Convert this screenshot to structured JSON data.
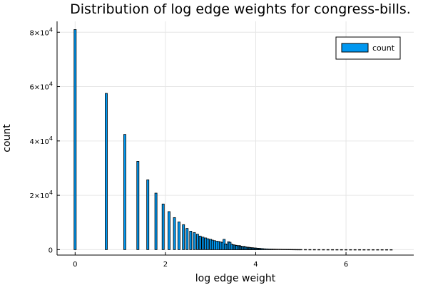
{
  "chart_data": {
    "type": "bar",
    "title": "Distribution of log edge weights for congress-bills.",
    "xlabel": "log edge weight",
    "ylabel": "count",
    "xlim": [
      -0.4,
      7.5
    ],
    "ylim": [
      -2000,
      84000
    ],
    "grid": true,
    "legend_position": "top-right",
    "x_ticks": [
      {
        "value": 0,
        "label": "0"
      },
      {
        "value": 2,
        "label": "2"
      },
      {
        "value": 4,
        "label": "4"
      },
      {
        "value": 6,
        "label": "6"
      }
    ],
    "y_ticks": [
      {
        "value": 0,
        "base": "0",
        "exp": ""
      },
      {
        "value": 20000,
        "base": "2×10",
        "exp": "4"
      },
      {
        "value": 40000,
        "base": "4×10",
        "exp": "4"
      },
      {
        "value": 60000,
        "base": "6×10",
        "exp": "4"
      },
      {
        "value": 80000,
        "base": "8×10",
        "exp": "4"
      }
    ],
    "bin_width": 0.0485,
    "colors": {
      "bar": "#0097f0",
      "bar_edge": "#000000",
      "axis": "#000000"
    },
    "series": [
      {
        "name": "count",
        "x": [
          0.0,
          0.69,
          1.1,
          1.39,
          1.61,
          1.79,
          1.95,
          2.08,
          2.2,
          2.3,
          2.4,
          2.48,
          2.56,
          2.64,
          2.71,
          2.77,
          2.83,
          2.89,
          2.94,
          3.0,
          3.04,
          3.09,
          3.14,
          3.18,
          3.22,
          3.26,
          3.3,
          3.33,
          3.37,
          3.4,
          3.43,
          3.47,
          3.5,
          3.53,
          3.56,
          3.58,
          3.61,
          3.64,
          3.66,
          3.69,
          3.71,
          3.74,
          3.76,
          3.78,
          3.81,
          3.83,
          3.85,
          3.87,
          3.89,
          3.91,
          3.93,
          3.95,
          3.97,
          3.99,
          4.01,
          4.03,
          4.05,
          4.07,
          4.09,
          4.11,
          4.13,
          4.16,
          4.2,
          4.25,
          4.3,
          4.35,
          4.4,
          4.45,
          4.5,
          4.55,
          4.6,
          4.65,
          4.7,
          4.75,
          4.8,
          4.85,
          4.9,
          4.95,
          5.0,
          5.1,
          5.2,
          5.3,
          5.4,
          5.5,
          5.6,
          5.7,
          5.8,
          5.9,
          6.0,
          6.1,
          6.2,
          6.3,
          6.4,
          6.5,
          6.6,
          6.7,
          6.8,
          6.9,
          7.0
        ],
        "values": [
          81000,
          57500,
          42400,
          32500,
          25700,
          20800,
          16800,
          14000,
          11800,
          10200,
          9200,
          7800,
          6800,
          6300,
          5700,
          5000,
          4600,
          4300,
          4000,
          3800,
          3500,
          3300,
          3100,
          3000,
          2800,
          2700,
          3800,
          2100,
          1900,
          2900,
          2700,
          2000,
          1800,
          1700,
          1600,
          1500,
          1400,
          1500,
          1300,
          1200,
          1100,
          1200,
          1000,
          1000,
          900,
          900,
          800,
          800,
          700,
          700,
          700,
          600,
          600,
          600,
          550,
          500,
          500,
          450,
          450,
          400,
          400,
          350,
          300,
          280,
          250,
          230,
          200,
          180,
          160,
          150,
          130,
          120,
          110,
          100,
          90,
          80,
          70,
          60,
          60,
          50,
          45,
          40,
          35,
          30,
          25,
          22,
          20,
          18,
          16,
          14,
          12,
          10,
          9,
          8,
          7,
          6,
          5,
          4,
          3
        ]
      }
    ]
  }
}
